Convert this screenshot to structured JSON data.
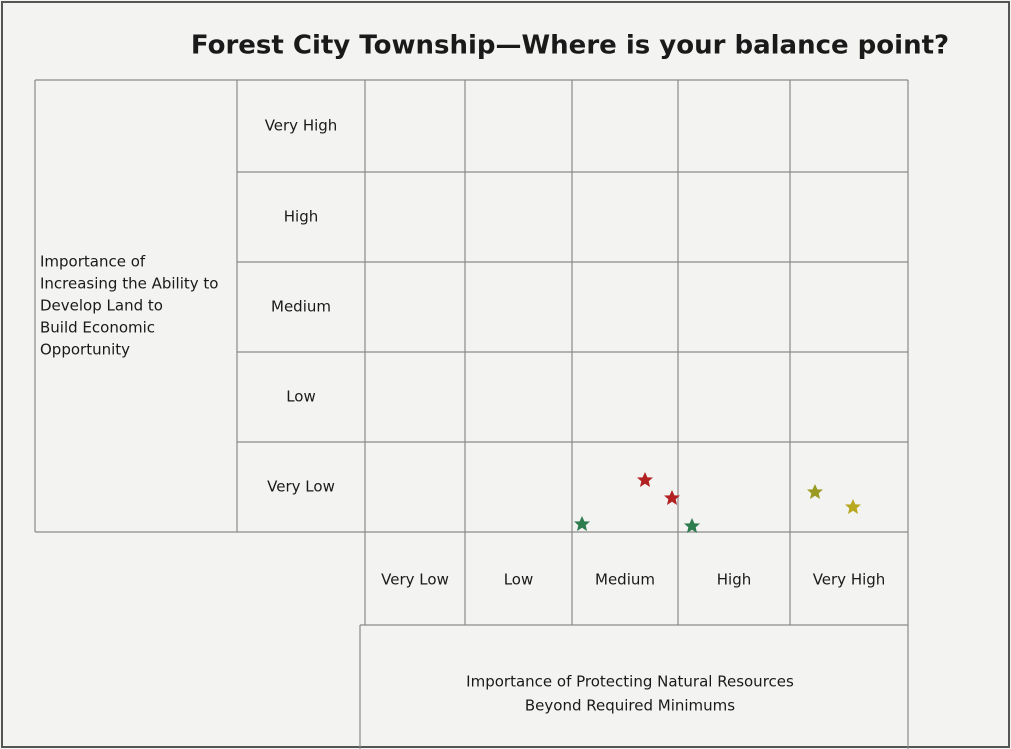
{
  "title": "Forest City Township—Where is your balance point?",
  "y_axis": {
    "label_lines": [
      "Importance of",
      "Increasing the Ability to",
      "Develop Land to",
      "Build Economic",
      "Opportunity"
    ],
    "levels": [
      "Very High",
      "High",
      "Medium",
      "Low",
      "Very Low"
    ]
  },
  "x_axis": {
    "levels": [
      "Very Low",
      "Low",
      "Medium",
      "High",
      "Very High"
    ],
    "label_lines": [
      "Importance of Protecting Natural Resources",
      "Beyond Required Minimums"
    ]
  }
}
